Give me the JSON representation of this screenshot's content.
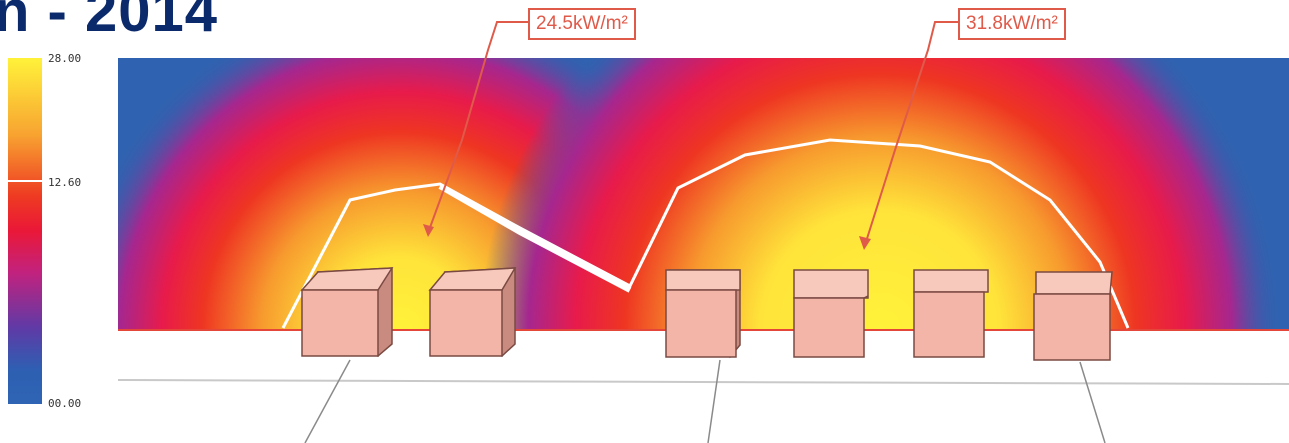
{
  "title": "n - 2014",
  "scale": {
    "max_label": "28.00",
    "mid_label": "12.60",
    "min_label": "00.00",
    "colors": {
      "high": "#fff23a",
      "mid": "#ea1838",
      "low": "#2f64b4"
    }
  },
  "callouts": [
    {
      "text": "24.5kW/m²"
    },
    {
      "text": "31.8kW/m²"
    }
  ],
  "colors": {
    "background_field": "#2f62b0",
    "hot_core": "#fff23a",
    "callout_border": "#e05a4a",
    "tank_face": "#f3b5a7",
    "tank_edge": "#7a4a42"
  }
}
